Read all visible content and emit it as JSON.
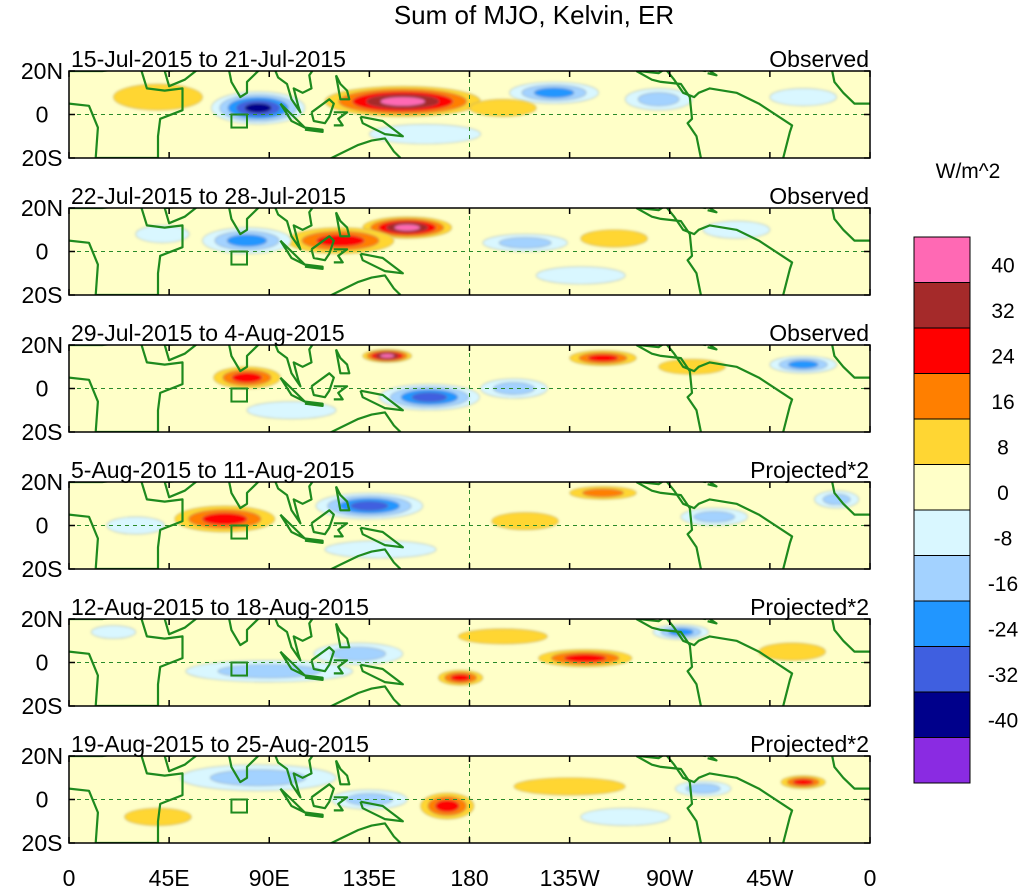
{
  "chart_data": {
    "type": "heatmap",
    "title": "Sum of MJO, Kelvin, ER",
    "units": "W/m^2",
    "xlim": [
      0,
      360
    ],
    "ylim": [
      -20,
      20
    ],
    "x_ticks": [
      {
        "lon": 0,
        "label": "0"
      },
      {
        "lon": 45,
        "label": "45E"
      },
      {
        "lon": 90,
        "label": "90E"
      },
      {
        "lon": 135,
        "label": "135E"
      },
      {
        "lon": 180,
        "label": "180"
      },
      {
        "lon": 225,
        "label": "135W"
      },
      {
        "lon": 270,
        "label": "90W"
      },
      {
        "lon": 315,
        "label": "45W"
      },
      {
        "lon": 360,
        "label": "0"
      }
    ],
    "y_ticks": [
      {
        "lat": 20,
        "label": "20N"
      },
      {
        "lat": 0,
        "label": "0"
      },
      {
        "lat": -20,
        "label": "20S"
      }
    ],
    "colorbar": {
      "levels": [
        "40",
        "32",
        "24",
        "16",
        "8",
        "0",
        "-8",
        "-16",
        "-24",
        "-32",
        "-40"
      ],
      "colors": [
        "#ff69b4",
        "#a52a2a",
        "#ff0000",
        "#ff7f00",
        "#ffd633",
        "#ffffc8",
        "#d9f7ff",
        "#a3d2ff",
        "#2196ff",
        "#3f5fe0",
        "#00008b",
        "#8a2be2"
      ]
    },
    "panels": [
      {
        "date_range": "15-Jul-2015 to 21-Jul-2015",
        "label": "Observed",
        "blobs": [
          {
            "lon": 150,
            "lat": 6,
            "w": 70,
            "h": 14,
            "v": 40
          },
          {
            "lon": 85,
            "lat": 3,
            "w": 42,
            "h": 15,
            "v": -40
          },
          {
            "lon": 218,
            "lat": 10,
            "w": 40,
            "h": 10,
            "v": -24
          },
          {
            "lon": 265,
            "lat": 7,
            "w": 30,
            "h": 10,
            "v": -16
          },
          {
            "lon": 40,
            "lat": 8,
            "w": 40,
            "h": 12,
            "v": 8
          },
          {
            "lon": 195,
            "lat": 3,
            "w": 30,
            "h": 8,
            "v": 8
          },
          {
            "lon": 160,
            "lat": -9,
            "w": 50,
            "h": 9,
            "v": -8
          },
          {
            "lon": 330,
            "lat": 8,
            "w": 30,
            "h": 8,
            "v": -8
          }
        ]
      },
      {
        "date_range": "22-Jul-2015 to 28-Jul-2015",
        "label": "Observed",
        "blobs": [
          {
            "lon": 152,
            "lat": 11,
            "w": 40,
            "h": 10,
            "v": 40
          },
          {
            "lon": 122,
            "lat": 5,
            "w": 48,
            "h": 12,
            "v": 24
          },
          {
            "lon": 80,
            "lat": 5,
            "w": 40,
            "h": 12,
            "v": -24
          },
          {
            "lon": 205,
            "lat": 4,
            "w": 38,
            "h": 8,
            "v": -16
          },
          {
            "lon": 42,
            "lat": 8,
            "w": 24,
            "h": 8,
            "v": -8
          },
          {
            "lon": 245,
            "lat": 6,
            "w": 30,
            "h": 8,
            "v": 8
          },
          {
            "lon": 300,
            "lat": 10,
            "w": 30,
            "h": 8,
            "v": -8
          },
          {
            "lon": 230,
            "lat": -11,
            "w": 40,
            "h": 8,
            "v": -8
          }
        ]
      },
      {
        "date_range": "29-Jul-2015 to 4-Aug-2015",
        "label": "Observed",
        "blobs": [
          {
            "lon": 143,
            "lat": 15,
            "w": 22,
            "h": 6,
            "v": 40
          },
          {
            "lon": 80,
            "lat": 5,
            "w": 30,
            "h": 10,
            "v": 24
          },
          {
            "lon": 162,
            "lat": -4,
            "w": 45,
            "h": 12,
            "v": -32
          },
          {
            "lon": 200,
            "lat": 0,
            "w": 30,
            "h": 9,
            "v": -16
          },
          {
            "lon": 240,
            "lat": 14,
            "w": 30,
            "h": 7,
            "v": 24
          },
          {
            "lon": 330,
            "lat": 11,
            "w": 30,
            "h": 8,
            "v": -24
          },
          {
            "lon": 100,
            "lat": -10,
            "w": 40,
            "h": 8,
            "v": -8
          },
          {
            "lon": 280,
            "lat": 10,
            "w": 30,
            "h": 7,
            "v": 8
          }
        ]
      },
      {
        "date_range": "5-Aug-2015 to 11-Aug-2015",
        "label": "Projected*2",
        "blobs": [
          {
            "lon": 70,
            "lat": 3,
            "w": 45,
            "h": 12,
            "v": 24
          },
          {
            "lon": 135,
            "lat": 9,
            "w": 48,
            "h": 12,
            "v": -32
          },
          {
            "lon": 205,
            "lat": 2,
            "w": 30,
            "h": 8,
            "v": 8
          },
          {
            "lon": 240,
            "lat": 15,
            "w": 30,
            "h": 6,
            "v": 16
          },
          {
            "lon": 290,
            "lat": 4,
            "w": 30,
            "h": 8,
            "v": -16
          },
          {
            "lon": 30,
            "lat": 0,
            "w": 26,
            "h": 8,
            "v": -8
          },
          {
            "lon": 140,
            "lat": -11,
            "w": 50,
            "h": 8,
            "v": -8
          },
          {
            "lon": 345,
            "lat": 12,
            "w": 20,
            "h": 8,
            "v": -16
          }
        ]
      },
      {
        "date_range": "12-Aug-2015 to 18-Aug-2015",
        "label": "Projected*2",
        "blobs": [
          {
            "lon": 232,
            "lat": 2,
            "w": 42,
            "h": 8,
            "v": 24
          },
          {
            "lon": 176,
            "lat": -7,
            "w": 20,
            "h": 7,
            "v": 24
          },
          {
            "lon": 90,
            "lat": -4,
            "w": 75,
            "h": 10,
            "v": -16
          },
          {
            "lon": 130,
            "lat": 4,
            "w": 40,
            "h": 10,
            "v": -16
          },
          {
            "lon": 275,
            "lat": 14,
            "w": 25,
            "h": 7,
            "v": -24
          },
          {
            "lon": 195,
            "lat": 12,
            "w": 40,
            "h": 7,
            "v": 8
          },
          {
            "lon": 325,
            "lat": 5,
            "w": 30,
            "h": 8,
            "v": 8
          },
          {
            "lon": 20,
            "lat": 14,
            "w": 20,
            "h": 6,
            "v": -8
          }
        ]
      },
      {
        "date_range": "19-Aug-2015 to 25-Aug-2015",
        "label": "Projected*2",
        "blobs": [
          {
            "lon": 170,
            "lat": -3,
            "w": 24,
            "h": 12,
            "v": 24
          },
          {
            "lon": 85,
            "lat": 10,
            "w": 70,
            "h": 12,
            "v": -16
          },
          {
            "lon": 135,
            "lat": 0,
            "w": 34,
            "h": 9,
            "v": -16
          },
          {
            "lon": 330,
            "lat": 8,
            "w": 20,
            "h": 6,
            "v": 24
          },
          {
            "lon": 225,
            "lat": 6,
            "w": 50,
            "h": 8,
            "v": 8
          },
          {
            "lon": 250,
            "lat": -8,
            "w": 40,
            "h": 8,
            "v": -8
          },
          {
            "lon": 285,
            "lat": 5,
            "w": 25,
            "h": 7,
            "v": -16
          },
          {
            "lon": 40,
            "lat": -8,
            "w": 30,
            "h": 8,
            "v": 8
          }
        ]
      }
    ]
  }
}
